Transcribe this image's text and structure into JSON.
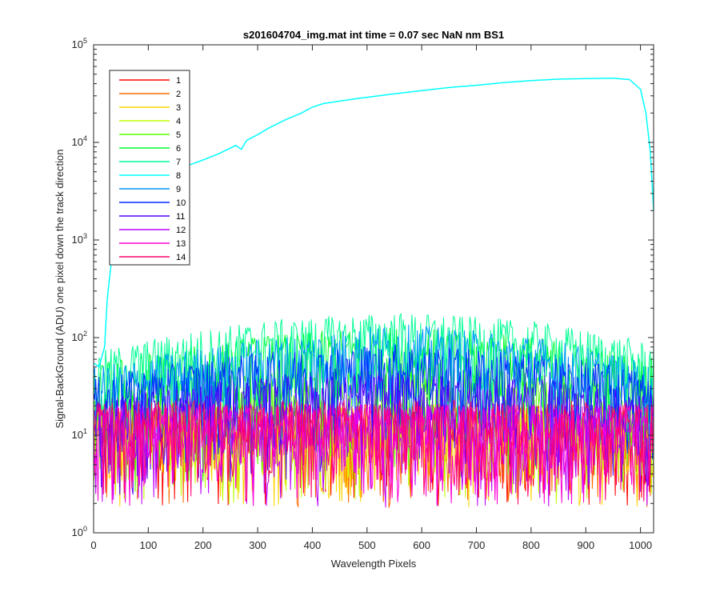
{
  "chart_data": {
    "type": "line",
    "title": "s201604704_img.mat int time = 0.07 sec  NaN nm BS1",
    "xlabel": "Wavelength Pixels",
    "ylabel": "Signal-BackGround (ADU) one pixel down the track direction",
    "xlim": [
      0,
      1024
    ],
    "ylim": [
      1,
      100000
    ],
    "yscale": "log",
    "xticks": [
      0,
      100,
      200,
      300,
      400,
      500,
      600,
      700,
      800,
      900,
      1000
    ],
    "yticks": [
      {
        "value": 1,
        "base": "10",
        "exp": "0"
      },
      {
        "value": 10,
        "base": "10",
        "exp": "1"
      },
      {
        "value": 100,
        "base": "10",
        "exp": "2"
      },
      {
        "value": 1000,
        "base": "10",
        "exp": "3"
      },
      {
        "value": 10000,
        "base": "10",
        "exp": "4"
      },
      {
        "value": 100000,
        "base": "10",
        "exp": "5"
      }
    ],
    "legend_position": "top-left",
    "series": [
      {
        "name": "1",
        "color": "#ff0000",
        "kind": "noise",
        "profile": [
          [
            0,
            12
          ],
          [
            1024,
            12
          ]
        ]
      },
      {
        "name": "2",
        "color": "#ff6a00",
        "kind": "noise",
        "profile": [
          [
            0,
            12
          ],
          [
            1024,
            12
          ]
        ]
      },
      {
        "name": "3",
        "color": "#ffd500",
        "kind": "noise",
        "profile": [
          [
            0,
            12
          ],
          [
            1024,
            12
          ]
        ]
      },
      {
        "name": "4",
        "color": "#bfff00",
        "kind": "noise",
        "profile": [
          [
            0,
            13
          ],
          [
            1024,
            13
          ]
        ]
      },
      {
        "name": "5",
        "color": "#55ff00",
        "kind": "noise",
        "profile": [
          [
            0,
            15
          ],
          [
            300,
            25
          ],
          [
            550,
            30
          ],
          [
            800,
            25
          ],
          [
            1024,
            18
          ]
        ]
      },
      {
        "name": "6",
        "color": "#00ff2a",
        "kind": "noise",
        "profile": [
          [
            0,
            30
          ],
          [
            300,
            60
          ],
          [
            550,
            75
          ],
          [
            800,
            60
          ],
          [
            1024,
            35
          ]
        ]
      },
      {
        "name": "7",
        "color": "#00ff95",
        "kind": "noise",
        "profile": [
          [
            0,
            40
          ],
          [
            300,
            85
          ],
          [
            550,
            105
          ],
          [
            800,
            85
          ],
          [
            1024,
            50
          ]
        ]
      },
      {
        "name": "8",
        "color": "#00ffff",
        "kind": "line",
        "points": [
          [
            0,
            55
          ],
          [
            10,
            50
          ],
          [
            20,
            80
          ],
          [
            25,
            250
          ],
          [
            30,
            450
          ],
          [
            35,
            800
          ],
          [
            45,
            1500
          ],
          [
            60,
            2700
          ],
          [
            80,
            3600
          ],
          [
            100,
            4100
          ],
          [
            130,
            5000
          ],
          [
            160,
            5500
          ],
          [
            180,
            6000
          ],
          [
            200,
            6600
          ],
          [
            230,
            7700
          ],
          [
            260,
            9300
          ],
          [
            270,
            8500
          ],
          [
            280,
            10500
          ],
          [
            300,
            12000
          ],
          [
            320,
            14000
          ],
          [
            350,
            17000
          ],
          [
            380,
            20000
          ],
          [
            400,
            23000
          ],
          [
            420,
            25000
          ],
          [
            450,
            26500
          ],
          [
            480,
            28000
          ],
          [
            510,
            29500
          ],
          [
            550,
            31500
          ],
          [
            600,
            34000
          ],
          [
            650,
            36500
          ],
          [
            700,
            38500
          ],
          [
            750,
            41000
          ],
          [
            800,
            43000
          ],
          [
            850,
            44500
          ],
          [
            900,
            45000
          ],
          [
            950,
            45500
          ],
          [
            980,
            44000
          ],
          [
            1000,
            35000
          ],
          [
            1010,
            20000
          ],
          [
            1018,
            8000
          ],
          [
            1024,
            2000
          ]
        ]
      },
      {
        "name": "9",
        "color": "#0095ff",
        "kind": "noise",
        "profile": [
          [
            0,
            28
          ],
          [
            300,
            55
          ],
          [
            550,
            80
          ],
          [
            800,
            60
          ],
          [
            1024,
            30
          ]
        ]
      },
      {
        "name": "10",
        "color": "#002aff",
        "kind": "noise",
        "profile": [
          [
            0,
            22
          ],
          [
            300,
            40
          ],
          [
            550,
            50
          ],
          [
            800,
            40
          ],
          [
            1024,
            25
          ]
        ]
      },
      {
        "name": "11",
        "color": "#5500ff",
        "kind": "noise",
        "profile": [
          [
            0,
            14
          ],
          [
            300,
            22
          ],
          [
            550,
            25
          ],
          [
            800,
            22
          ],
          [
            1024,
            15
          ]
        ]
      },
      {
        "name": "12",
        "color": "#bf00ff",
        "kind": "noise",
        "profile": [
          [
            0,
            12
          ],
          [
            1024,
            12
          ]
        ]
      },
      {
        "name": "13",
        "color": "#ff00d4",
        "kind": "noise",
        "profile": [
          [
            0,
            12
          ],
          [
            1024,
            12
          ]
        ]
      },
      {
        "name": "14",
        "color": "#ff006a",
        "kind": "noise",
        "profile": [
          [
            0,
            13
          ],
          [
            1024,
            13
          ]
        ]
      }
    ]
  }
}
